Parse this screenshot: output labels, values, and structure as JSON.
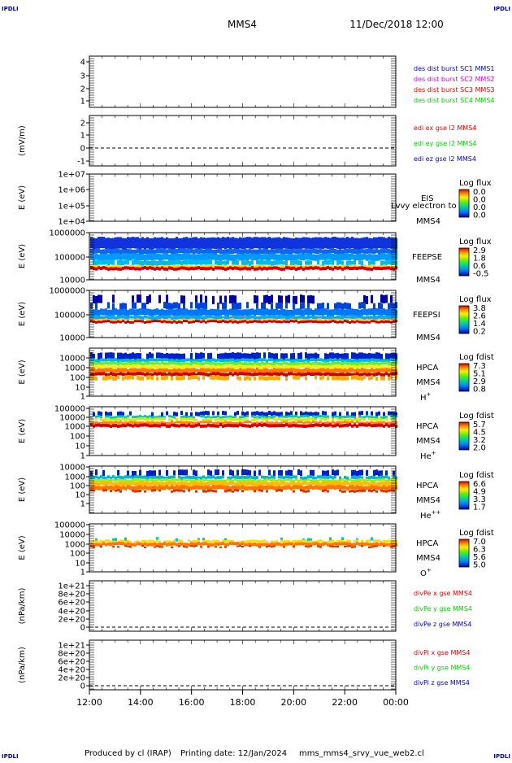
{
  "header": {
    "corner_left_top": "IPDLI",
    "corner_right_top": "IPDLI",
    "corner_left_bottom": "IPDLI",
    "corner_right_bottom": "IPDLI",
    "spacecraft": "MMS4",
    "datetime": "11/Dec/2018 12:00"
  },
  "footer": {
    "produced_by": "Produced by cl (IRAP)",
    "printing_date": "Printing date: 12/Jan/2024",
    "script_name": "mms_mms4_srvy_vue_web2.cl"
  },
  "colors": {
    "blue": "#0000cc",
    "magenta": "#dd00dd",
    "red": "#dd0000",
    "green": "#00cc00"
  },
  "chart_data": [
    {
      "id": "des",
      "type": "line",
      "y_ticks": [
        "4",
        "3",
        "2",
        "1"
      ],
      "ylim": [
        0.6,
        4.4
      ],
      "ylabel": "",
      "legend": [
        {
          "label": "des dist burst SC1 MMS1",
          "color": "#0000cc"
        },
        {
          "label": "des dist burst SC2 MMS2",
          "color": "#dd00dd"
        },
        {
          "label": "des dist burst SC3 MMS3",
          "color": "#dd0000"
        },
        {
          "label": "des dist burst SC4 MMS4",
          "color": "#00cc00"
        }
      ],
      "series": []
    },
    {
      "id": "edi",
      "type": "line",
      "ylabel": "(mV/m)",
      "y_ticks": [
        "2",
        "1",
        "0",
        "-1"
      ],
      "ylim": [
        -1.3,
        2.6
      ],
      "zero_line": true,
      "legend": [
        {
          "label": "edi ex gse l2 MMS4",
          "color": "#dd0000"
        },
        {
          "label": "edi ey gse l2 MMS4",
          "color": "#00cc00"
        },
        {
          "label": "edi ez gse l2 MMS4",
          "color": "#0000cc"
        }
      ],
      "series": []
    },
    {
      "id": "eis",
      "type": "heatmap",
      "ylabel": "E (eV)",
      "y_ticks": [
        "1e+07",
        "1e+06",
        "1e+05",
        "1e+04"
      ],
      "side_labels": [
        "EIS",
        "MMS4"
      ],
      "overlay_text": "Lvvy electron to",
      "colorbar": {
        "title": "Log flux",
        "ticks": [
          "0.0",
          "0.0",
          "0.0",
          "0.0"
        ]
      }
    },
    {
      "id": "feepse",
      "type": "heatmap",
      "ylabel": "E (eV)",
      "y_ticks": [
        "1000000",
        "100000",
        "10000"
      ],
      "side_labels": [
        "FEEPSE",
        "MMS4"
      ],
      "colorbar": {
        "title": "Log flux",
        "ticks": [
          "2.9",
          "1.8",
          "0.6",
          "-0.5"
        ]
      }
    },
    {
      "id": "feepsi",
      "type": "heatmap",
      "ylabel": "E (eV)",
      "y_ticks": [
        "1000000",
        "100000",
        "10000"
      ],
      "side_labels": [
        "FEEPSI",
        "MMS4"
      ],
      "colorbar": {
        "title": "Log flux",
        "ticks": [
          "3.8",
          "2.6",
          "1.4",
          "0.2"
        ]
      }
    },
    {
      "id": "hpca_h",
      "type": "heatmap",
      "ylabel": "E (eV)",
      "y_ticks": [
        "10000",
        "1000",
        "100",
        "10",
        "1"
      ],
      "side_labels": [
        "HPCA",
        "MMS4"
      ],
      "species": {
        "base": "H",
        "sup": "+"
      },
      "colorbar": {
        "title": "Log fdist",
        "ticks": [
          "7.3",
          "5.1",
          "2.9",
          "0.8"
        ]
      }
    },
    {
      "id": "hpca_he",
      "type": "heatmap",
      "ylabel": "E (eV)",
      "y_ticks": [
        "100000",
        "10000",
        "1000",
        "100",
        "10",
        "1"
      ],
      "side_labels": [
        "HPCA",
        "MMS4"
      ],
      "species": {
        "base": "He",
        "sup": "+"
      },
      "colorbar": {
        "title": "Log fdist",
        "ticks": [
          "5.7",
          "4.5",
          "3.2",
          "2.0"
        ]
      }
    },
    {
      "id": "hpca_hepp",
      "type": "heatmap",
      "ylabel": "E (eV)",
      "y_ticks": [
        "10000",
        "1000",
        "100",
        "10",
        "1"
      ],
      "side_labels": [
        "HPCA",
        "MMS4"
      ],
      "species": {
        "base": "He",
        "sup": "++"
      },
      "colorbar": {
        "title": "Log fdist",
        "ticks": [
          "6.6",
          "4.9",
          "3.3",
          "1.7"
        ]
      }
    },
    {
      "id": "hpca_o",
      "type": "heatmap",
      "ylabel": "E (eV)",
      "y_ticks": [
        "100000",
        "10000",
        "1000",
        "100",
        "10",
        "1"
      ],
      "side_labels": [
        "HPCA",
        "MMS4"
      ],
      "species": {
        "base": "O",
        "sup": "+"
      },
      "colorbar": {
        "title": "Log fdist",
        "ticks": [
          "7.0",
          "6.3",
          "5.6",
          "5.0"
        ]
      }
    },
    {
      "id": "divpe",
      "type": "line",
      "ylabel": "(nPa/km)",
      "y_ticks": [
        "1e+21",
        "8e+20",
        "6e+20",
        "4e+20",
        "2e+20",
        "0"
      ],
      "zero_line": true,
      "legend": [
        {
          "label": "divPe x gse MMS4",
          "color": "#dd0000"
        },
        {
          "label": "divPe y gse MMS4",
          "color": "#00cc00"
        },
        {
          "label": "divPe z gse MMS4",
          "color": "#0000cc"
        }
      ],
      "series": []
    },
    {
      "id": "divpi",
      "type": "line",
      "ylabel": "(nPa/km)",
      "y_ticks": [
        "1e+21",
        "8e+20",
        "6e+20",
        "4e+20",
        "2e+20",
        "0"
      ],
      "zero_line": true,
      "legend": [
        {
          "label": "divPi x gse MMS4",
          "color": "#dd0000"
        },
        {
          "label": "divPi y gse MMS4",
          "color": "#00cc00"
        },
        {
          "label": "divPi z gse MMS4",
          "color": "#0000cc"
        }
      ],
      "series": []
    }
  ],
  "x_axis": {
    "tick_labels": [
      "12:00",
      "14:00",
      "16:00",
      "18:00",
      "20:00",
      "22:00",
      "00:00"
    ]
  }
}
